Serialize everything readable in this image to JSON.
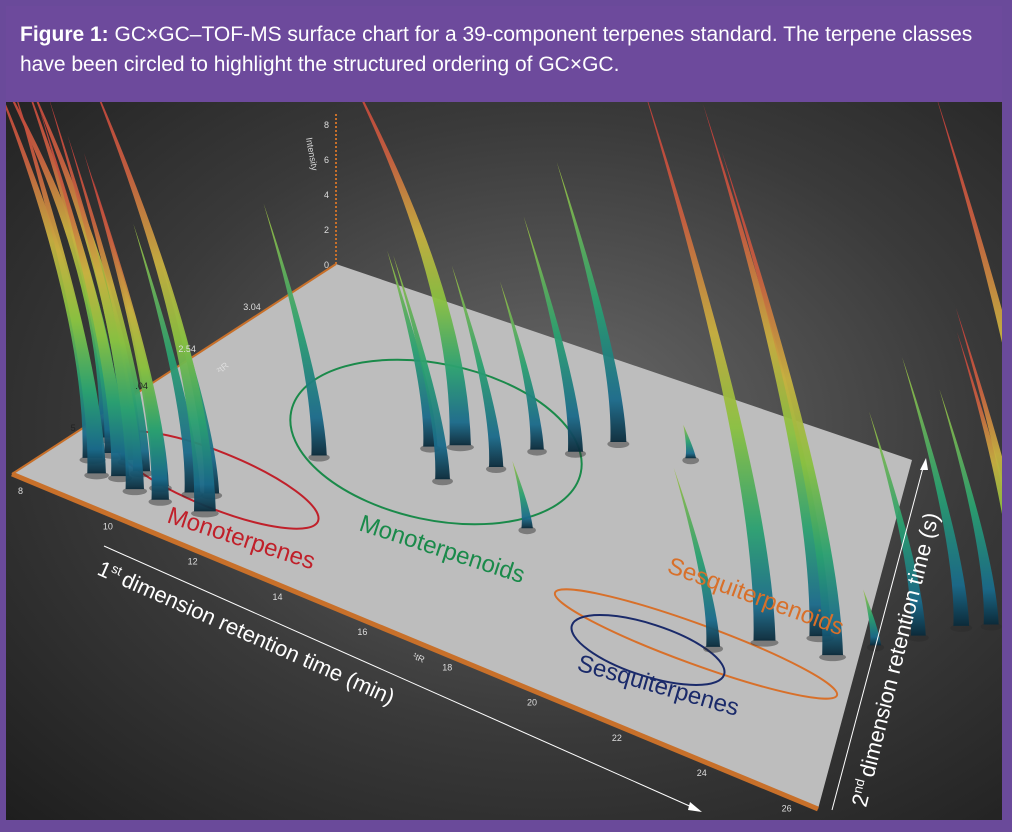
{
  "caption": {
    "figure_label": "Figure 1:",
    "text": "GC×GC–TOF-MS surface chart for a 39-component terpenes standard. The terpene classes have been circled to highlight the structured ordering of GC×GC."
  },
  "chart_data": {
    "type": "surface3d",
    "x_axis": {
      "label_prefix": "1",
      "label_superscript": "st",
      "label_main": "dimension retention time (min)",
      "ticks": [
        "8",
        "10",
        "12",
        "14",
        "16",
        "18",
        "20",
        "22",
        "24",
        "26"
      ],
      "short_label": "¹tR"
    },
    "y_axis": {
      "label_prefix": "2",
      "label_superscript": "nd",
      "label_main": "dimension retention time (s)",
      "ticks": [
        "1.04",
        "2.54",
        "3.04"
      ],
      "partial_ticks": [
        "5",
        ".04"
      ],
      "short_label": "²tR"
    },
    "z_axis": {
      "label": "Intensity",
      "ticks": [
        "0",
        "2",
        "4",
        "6",
        "8"
      ]
    },
    "classes": [
      {
        "name": "Monoterpenes",
        "color": "#c0202a"
      },
      {
        "name": "Monoterpenoids",
        "color": "#1a8a4a"
      },
      {
        "name": "Sesquiterpenes",
        "color": "#1a2a6a"
      },
      {
        "name": "Sesquiterpenoids",
        "color": "#d8702a"
      }
    ],
    "peaks": [
      {
        "class": "Monoterpenes",
        "t1": 8.6,
        "t2": 1.6,
        "h": 0.95
      },
      {
        "class": "Monoterpenes",
        "t1": 8.8,
        "t2": 1.4,
        "h": 0.85
      },
      {
        "class": "Monoterpenes",
        "t1": 9.0,
        "t2": 1.5,
        "h": 0.78
      },
      {
        "class": "Monoterpenes",
        "t1": 9.2,
        "t2": 1.3,
        "h": 0.72
      },
      {
        "class": "Monoterpenes",
        "t1": 9.4,
        "t2": 1.5,
        "h": 0.9
      },
      {
        "class": "Monoterpenes",
        "t1": 9.6,
        "t2": 1.35,
        "h": 0.66
      },
      {
        "class": "Monoterpenes",
        "t1": 9.8,
        "t2": 1.45,
        "h": 0.6
      },
      {
        "class": "Monoterpenes",
        "t1": 10.1,
        "t2": 1.3,
        "h": 0.7
      },
      {
        "class": "Monoterpenes",
        "t1": 10.4,
        "t2": 1.4,
        "h": 0.55
      },
      {
        "class": "Monoterpenes",
        "t1": 10.7,
        "t2": 1.3,
        "h": 0.62
      },
      {
        "class": "Monoterpenes",
        "t1": 11.0,
        "t2": 1.45,
        "h": 0.48
      },
      {
        "class": "Monoterpenes",
        "t1": 11.3,
        "t2": 1.5,
        "h": 0.42
      },
      {
        "class": "Monoterpenes",
        "t1": 11.6,
        "t2": 1.35,
        "h": 0.98
      },
      {
        "class": "Monoterpenoids",
        "t1": 12.0,
        "t2": 2.1,
        "h": 0.45
      },
      {
        "class": "Monoterpenoids",
        "t1": 13.4,
        "t2": 2.5,
        "h": 0.35
      },
      {
        "class": "Monoterpenoids",
        "t1": 13.8,
        "t2": 2.6,
        "h": 0.95
      },
      {
        "class": "Monoterpenoids",
        "t1": 14.3,
        "t2": 2.3,
        "h": 0.4
      },
      {
        "class": "Monoterpenoids",
        "t1": 14.8,
        "t2": 2.55,
        "h": 0.36
      },
      {
        "class": "Monoterpenoids",
        "t1": 15.0,
        "t2": 2.8,
        "h": 0.3
      },
      {
        "class": "Monoterpenoids",
        "t1": 15.6,
        "t2": 2.9,
        "h": 0.42
      },
      {
        "class": "Monoterpenoids",
        "t1": 16.0,
        "t2": 3.1,
        "h": 0.5
      },
      {
        "class": "Monoterpenoids",
        "t1": 16.6,
        "t2": 2.2,
        "h": 0.12
      },
      {
        "class": "Monoterpenoids",
        "t1": 17.4,
        "t2": 3.2,
        "h": 0.06
      },
      {
        "class": "Sesquiterpenes",
        "t1": 21.9,
        "t2": 1.9,
        "h": 0.32
      },
      {
        "class": "Sesquiterpenes",
        "t1": 22.5,
        "t2": 2.1,
        "h": 1.0
      },
      {
        "class": "Sesquiterpenes",
        "t1": 23.2,
        "t2": 2.3,
        "h": 0.95
      },
      {
        "class": "Sesquiterpenes",
        "t1": 23.8,
        "t2": 2.2,
        "h": 0.9
      },
      {
        "class": "Sesquiterpenes",
        "t1": 24.2,
        "t2": 2.4,
        "h": 0.1
      },
      {
        "class": "Sesquiterpenoids",
        "t1": 24.6,
        "t2": 2.6,
        "h": 0.4
      },
      {
        "class": "Sesquiterpenoids",
        "t1": 25.0,
        "t2": 2.8,
        "h": 0.48
      },
      {
        "class": "Sesquiterpenoids",
        "t1": 25.4,
        "t2": 2.9,
        "h": 0.42
      },
      {
        "class": "Sesquiterpenoids",
        "t1": 25.8,
        "t2": 3.0,
        "h": 0.52
      },
      {
        "class": "Sesquiterpenoids",
        "t1": 26.1,
        "t2": 2.95,
        "h": 0.58
      },
      {
        "class": "Sesquiterpenoids",
        "t1": 26.4,
        "t2": 3.05,
        "h": 0.96
      },
      {
        "class": "Sesquiterpenoids",
        "t1": 26.7,
        "t2": 3.1,
        "h": 0.55
      },
      {
        "class": "Sesquiterpenoids",
        "t1": 26.9,
        "t2": 3.2,
        "h": 0.62
      }
    ]
  }
}
